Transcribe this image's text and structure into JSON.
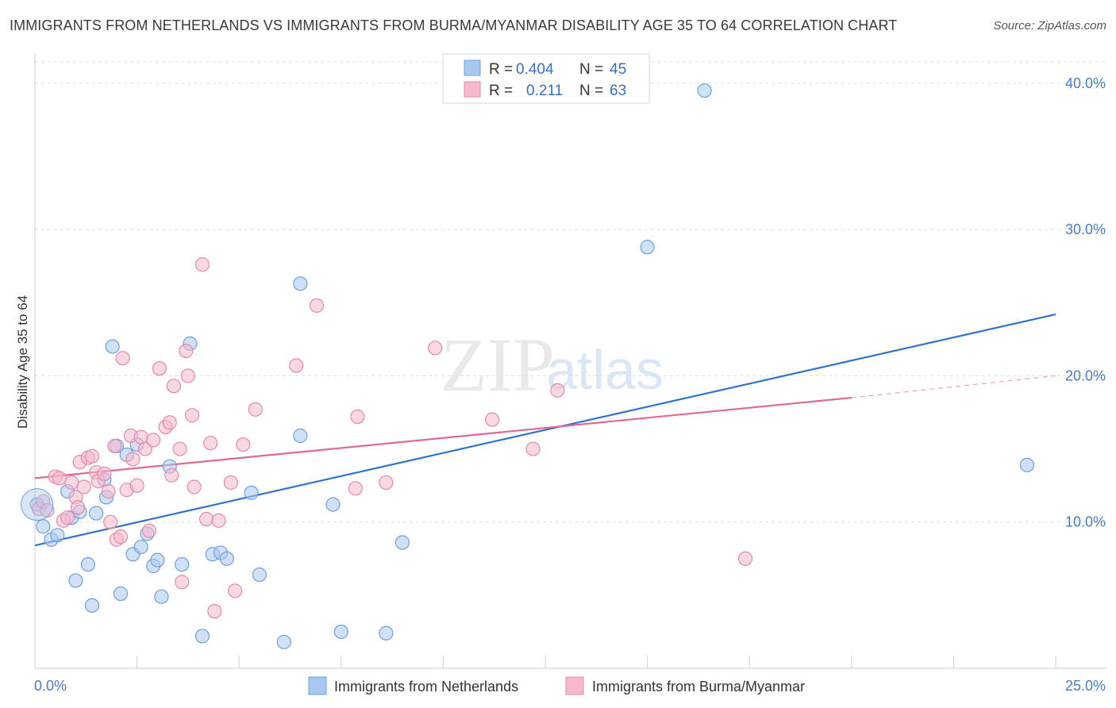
{
  "title": "IMMIGRANTS FROM NETHERLANDS VS IMMIGRANTS FROM BURMA/MYANMAR DISABILITY AGE 35 TO 64 CORRELATION CHART",
  "source": "Source: ZipAtlas.com",
  "watermark": {
    "zip": "ZIP",
    "atlas": "atlas"
  },
  "legend_box": {
    "rows": [
      {
        "r_label": "R =",
        "r_value": "0.404",
        "n_label": "N =",
        "n_value": "45",
        "color": "#a9c8f0"
      },
      {
        "r_label": "R =",
        "r_value": "0.211",
        "n_label": "N =",
        "n_value": "63",
        "color": "#f5b8cc"
      }
    ]
  },
  "bottom_legend": [
    {
      "label": "Immigrants from Netherlands",
      "color": "#a9c8f0"
    },
    {
      "label": "Immigrants from Burma/Myanmar",
      "color": "#f5b8cc"
    }
  ],
  "chart_data": {
    "type": "scatter",
    "title": "IMMIGRANTS FROM NETHERLANDS VS IMMIGRANTS FROM BURMA/MYANMAR DISABILITY AGE 35 TO 64 CORRELATION CHART",
    "xlabel": "",
    "ylabel": "Disability Age 35 to 64",
    "xlim": [
      0,
      25
    ],
    "ylim": [
      0,
      42
    ],
    "x_tick_labels": [
      "0.0%",
      "25.0%"
    ],
    "y_ticks": [
      10,
      20,
      30,
      40
    ],
    "y_tick_labels": [
      "10.0%",
      "20.0%",
      "30.0%",
      "40.0%"
    ],
    "grid": true,
    "legend_position": "top-center",
    "series": [
      {
        "name": "Immigrants from Netherlands",
        "color": "#a9c8f0",
        "stroke": "#6f9fdc",
        "line_color": "#3272cf",
        "trend": {
          "x": [
            0,
            25
          ],
          "y": [
            8.4,
            24.2
          ]
        },
        "points": [
          [
            0.05,
            11.2
          ],
          [
            0.2,
            9.7
          ],
          [
            0.4,
            8.8
          ],
          [
            0.55,
            9.1
          ],
          [
            0.8,
            12.1
          ],
          [
            0.9,
            10.3
          ],
          [
            1.0,
            6.0
          ],
          [
            1.1,
            10.7
          ],
          [
            1.3,
            7.1
          ],
          [
            1.4,
            4.3
          ],
          [
            1.5,
            10.6
          ],
          [
            1.7,
            12.9
          ],
          [
            1.75,
            11.7
          ],
          [
            1.9,
            22.0
          ],
          [
            2.0,
            15.2
          ],
          [
            2.1,
            5.1
          ],
          [
            2.25,
            14.6
          ],
          [
            2.4,
            7.8
          ],
          [
            2.5,
            15.3
          ],
          [
            2.6,
            8.3
          ],
          [
            2.75,
            9.2
          ],
          [
            2.9,
            7.0
          ],
          [
            3.0,
            7.4
          ],
          [
            3.1,
            4.9
          ],
          [
            3.3,
            13.8
          ],
          [
            3.6,
            7.1
          ],
          [
            3.8,
            22.2
          ],
          [
            4.1,
            2.2
          ],
          [
            4.35,
            7.8
          ],
          [
            4.55,
            7.9
          ],
          [
            4.7,
            7.5
          ],
          [
            5.3,
            12.0
          ],
          [
            5.5,
            6.4
          ],
          [
            6.1,
            1.8
          ],
          [
            6.5,
            26.3
          ],
          [
            6.5,
            15.9
          ],
          [
            7.3,
            11.2
          ],
          [
            7.5,
            2.5
          ],
          [
            8.6,
            2.4
          ],
          [
            9.0,
            8.6
          ],
          [
            15.0,
            28.8
          ],
          [
            16.4,
            39.5
          ],
          [
            24.3,
            13.9
          ]
        ]
      },
      {
        "name": "Immigrants from Burma/Myanmar",
        "color": "#f5b8cc",
        "stroke": "#e48aa9",
        "line_color": "#e0679a",
        "trend": {
          "x": [
            0,
            20
          ],
          "y": [
            13.0,
            18.5
          ]
        },
        "trend_dashed": {
          "x": [
            20,
            25
          ],
          "y": [
            18.5,
            20.0
          ]
        },
        "points": [
          [
            0.1,
            10.9
          ],
          [
            0.2,
            11.4
          ],
          [
            0.3,
            10.8
          ],
          [
            0.5,
            13.1
          ],
          [
            0.6,
            13.0
          ],
          [
            0.7,
            10.1
          ],
          [
            0.8,
            10.3
          ],
          [
            0.9,
            12.7
          ],
          [
            1.0,
            11.7
          ],
          [
            1.05,
            11.0
          ],
          [
            1.1,
            14.1
          ],
          [
            1.2,
            12.4
          ],
          [
            1.3,
            14.4
          ],
          [
            1.4,
            14.5
          ],
          [
            1.5,
            13.4
          ],
          [
            1.55,
            12.8
          ],
          [
            1.7,
            13.3
          ],
          [
            1.8,
            12.1
          ],
          [
            1.85,
            10.0
          ],
          [
            1.95,
            15.2
          ],
          [
            2.0,
            8.8
          ],
          [
            2.1,
            9.0
          ],
          [
            2.15,
            21.2
          ],
          [
            2.25,
            12.2
          ],
          [
            2.35,
            15.9
          ],
          [
            2.4,
            14.3
          ],
          [
            2.5,
            12.5
          ],
          [
            2.6,
            15.8
          ],
          [
            2.7,
            15.0
          ],
          [
            2.8,
            9.4
          ],
          [
            2.9,
            15.6
          ],
          [
            3.05,
            20.5
          ],
          [
            3.2,
            16.5
          ],
          [
            3.3,
            16.8
          ],
          [
            3.35,
            13.2
          ],
          [
            3.4,
            19.3
          ],
          [
            3.55,
            15.0
          ],
          [
            3.6,
            5.9
          ],
          [
            3.7,
            21.7
          ],
          [
            3.75,
            20.0
          ],
          [
            3.85,
            17.3
          ],
          [
            3.9,
            12.4
          ],
          [
            4.1,
            27.6
          ],
          [
            4.2,
            10.2
          ],
          [
            4.3,
            15.4
          ],
          [
            4.4,
            3.9
          ],
          [
            4.5,
            10.1
          ],
          [
            4.8,
            12.7
          ],
          [
            4.9,
            5.3
          ],
          [
            5.1,
            15.3
          ],
          [
            5.4,
            17.7
          ],
          [
            6.4,
            20.7
          ],
          [
            6.9,
            24.8
          ],
          [
            7.85,
            12.3
          ],
          [
            7.9,
            17.2
          ],
          [
            8.6,
            12.7
          ],
          [
            9.8,
            21.9
          ],
          [
            11.2,
            17.0
          ],
          [
            12.2,
            15.0
          ],
          [
            12.8,
            19.0
          ],
          [
            17.4,
            7.5
          ]
        ]
      }
    ]
  }
}
